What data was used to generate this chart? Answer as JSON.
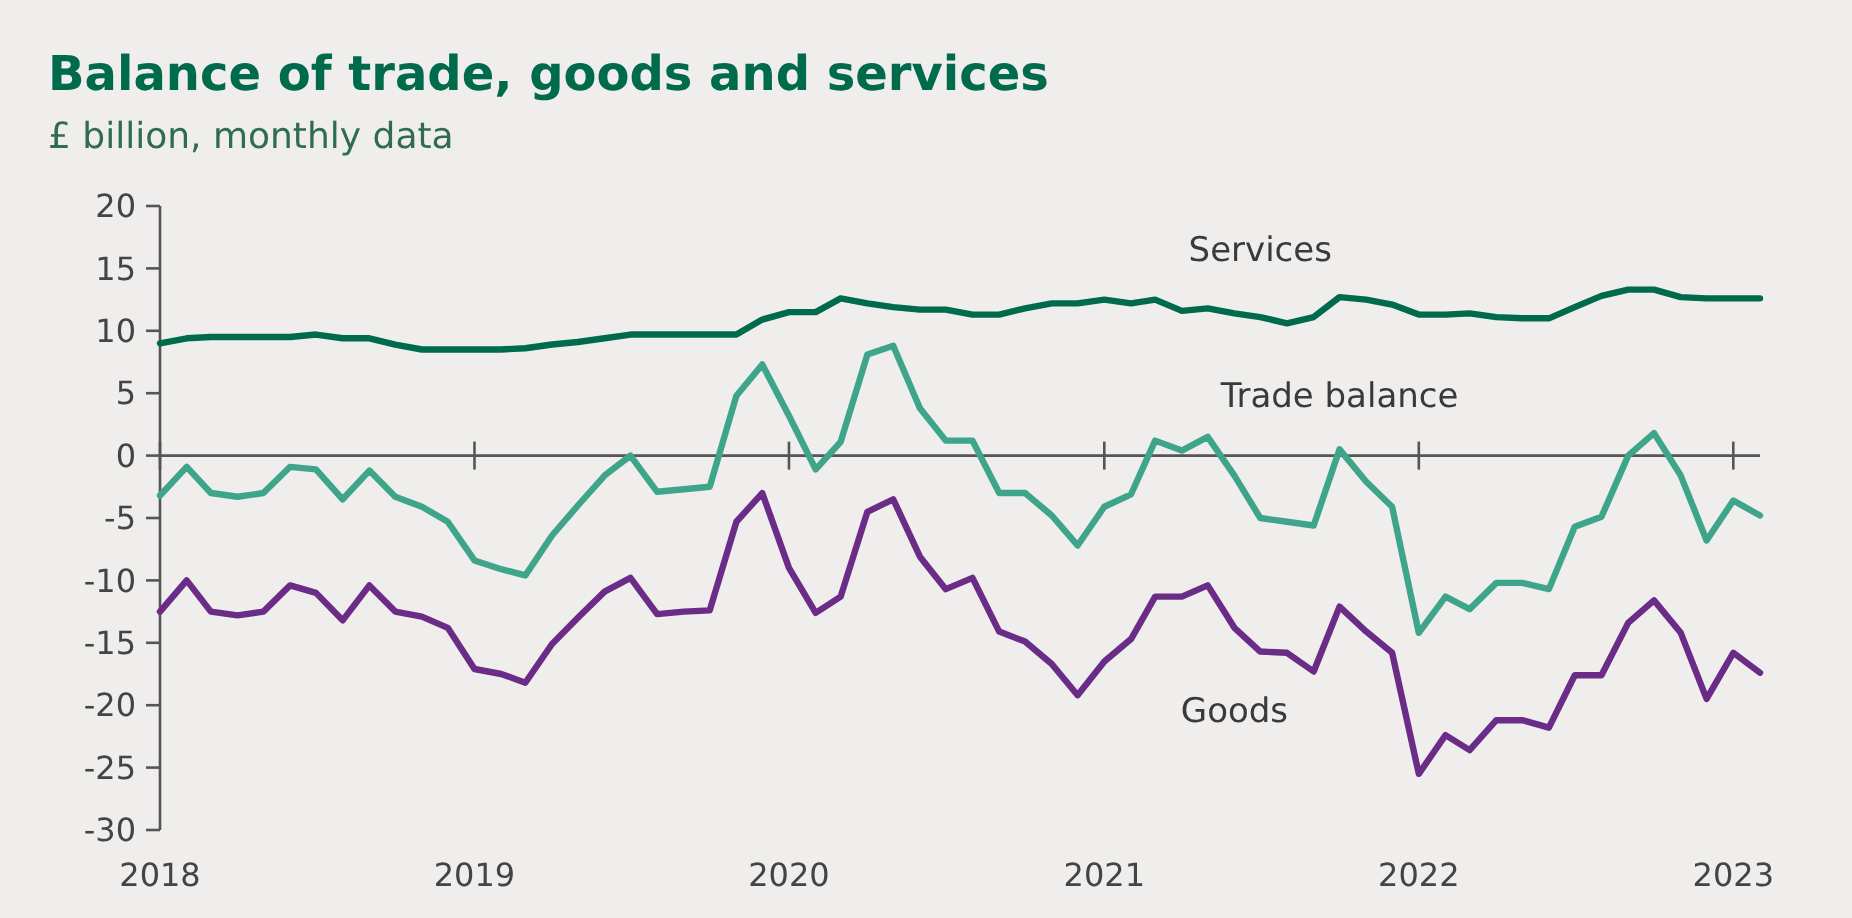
{
  "chart_data": {
    "type": "line",
    "title": "Balance of trade, goods and services",
    "subtitle": "£ billion, monthly data",
    "x": [
      "2018-01",
      "2018-02",
      "2018-03",
      "2018-04",
      "2018-05",
      "2018-06",
      "2018-07",
      "2018-08",
      "2018-09",
      "2018-10",
      "2018-11",
      "2018-12",
      "2019-01",
      "2019-02",
      "2019-03",
      "2019-04",
      "2019-05",
      "2019-06",
      "2019-07",
      "2019-08",
      "2019-09",
      "2019-10",
      "2019-11",
      "2019-12",
      "2020-01",
      "2020-02",
      "2020-03",
      "2020-04",
      "2020-05",
      "2020-06",
      "2020-07",
      "2020-08",
      "2020-09",
      "2020-10",
      "2020-11",
      "2020-12",
      "2021-01",
      "2021-02",
      "2021-03",
      "2021-04",
      "2021-05",
      "2021-06",
      "2021-07",
      "2021-08",
      "2021-09",
      "2021-10",
      "2021-11",
      "2021-12",
      "2022-01",
      "2022-02",
      "2022-03",
      "2022-04",
      "2022-05",
      "2022-06",
      "2022-07",
      "2022-08",
      "2022-09",
      "2022-10",
      "2022-11",
      "2022-12",
      "2023-01",
      "2023-02"
    ],
    "series": [
      {
        "name": "Services",
        "color": "#006a4d",
        "values": [
          9.0,
          9.4,
          9.5,
          9.5,
          9.5,
          9.5,
          9.7,
          9.4,
          9.4,
          8.9,
          8.5,
          8.5,
          8.5,
          8.5,
          8.6,
          8.9,
          9.1,
          9.4,
          9.7,
          9.7,
          9.7,
          9.7,
          9.7,
          10.9,
          11.5,
          11.5,
          12.6,
          12.2,
          11.9,
          11.7,
          11.7,
          11.3,
          11.3,
          11.8,
          12.2,
          12.2,
          12.5,
          12.2,
          12.5,
          11.6,
          11.8,
          11.4,
          11.1,
          10.6,
          11.1,
          12.7,
          12.5,
          12.1,
          11.3,
          11.3,
          11.4,
          11.1,
          11.0,
          11.0,
          11.9,
          12.8,
          13.3,
          13.3,
          12.7,
          12.6,
          12.6,
          12.6
        ]
      },
      {
        "name": "Trade balance",
        "color": "#3fa58a",
        "values": [
          -3.2,
          -0.9,
          -3.0,
          -3.3,
          -3.0,
          -0.9,
          -1.1,
          -3.5,
          -1.2,
          -3.3,
          -4.1,
          -5.3,
          -8.4,
          -9.1,
          -9.6,
          -6.4,
          -4.0,
          -1.6,
          0,
          -2.9,
          -2.7,
          -2.5,
          4.8,
          7.3,
          3.2,
          -1.1,
          1.1,
          8.1,
          8.8,
          3.8,
          1.2,
          1.2,
          -3.0,
          -3.0,
          -4.8,
          -7.2,
          -4.1,
          -3.1,
          1.2,
          0.4,
          1.5,
          -1.6,
          -5.0,
          -5.3,
          -5.6,
          0.5,
          -2.1,
          -4.1,
          -14.2,
          -11.3,
          -12.3,
          -10.2,
          -10.2,
          -10.7,
          -5.7,
          -4.9,
          0,
          1.8,
          -1.6,
          -6.8,
          -3.6,
          -4.8
        ]
      },
      {
        "name": "Goods",
        "color": "#6b2c87",
        "values": [
          -12.5,
          -10.0,
          -12.5,
          -12.8,
          -12.5,
          -10.4,
          -11.0,
          -13.2,
          -10.4,
          -12.5,
          -12.9,
          -13.8,
          -17.1,
          -17.5,
          -18.2,
          -15.1,
          -13.0,
          -10.9,
          -9.8,
          -12.7,
          -12.5,
          -12.4,
          -5.3,
          -3.0,
          -9.0,
          -12.6,
          -11.3,
          -4.5,
          -3.5,
          -8.1,
          -10.7,
          -9.8,
          -14.1,
          -14.9,
          -16.7,
          -19.2,
          -16.5,
          -14.7,
          -11.3,
          -11.3,
          -10.4,
          -13.8,
          -15.7,
          -15.8,
          -17.3,
          -12.1,
          -14.1,
          -15.8,
          -25.5,
          -22.4,
          -23.6,
          -21.2,
          -21.2,
          -21.8,
          -17.6,
          -17.6,
          -13.4,
          -11.6,
          -14.2,
          -19.5,
          -15.8,
          -17.4
        ]
      }
    ],
    "xlim": [
      "2018-01",
      "2023-02"
    ],
    "xticks": [
      "2018",
      "2019",
      "2020",
      "2021",
      "2022",
      "2023"
    ],
    "ylim": [
      -30,
      20
    ],
    "yticks": [
      -30,
      -25,
      -20,
      -15,
      -10,
      -5,
      0,
      5,
      10,
      15,
      20
    ],
    "ref_lines": [
      {
        "axis": "y",
        "value": 0
      }
    ],
    "legend": false,
    "marker": "none",
    "line_style": "solid"
  }
}
